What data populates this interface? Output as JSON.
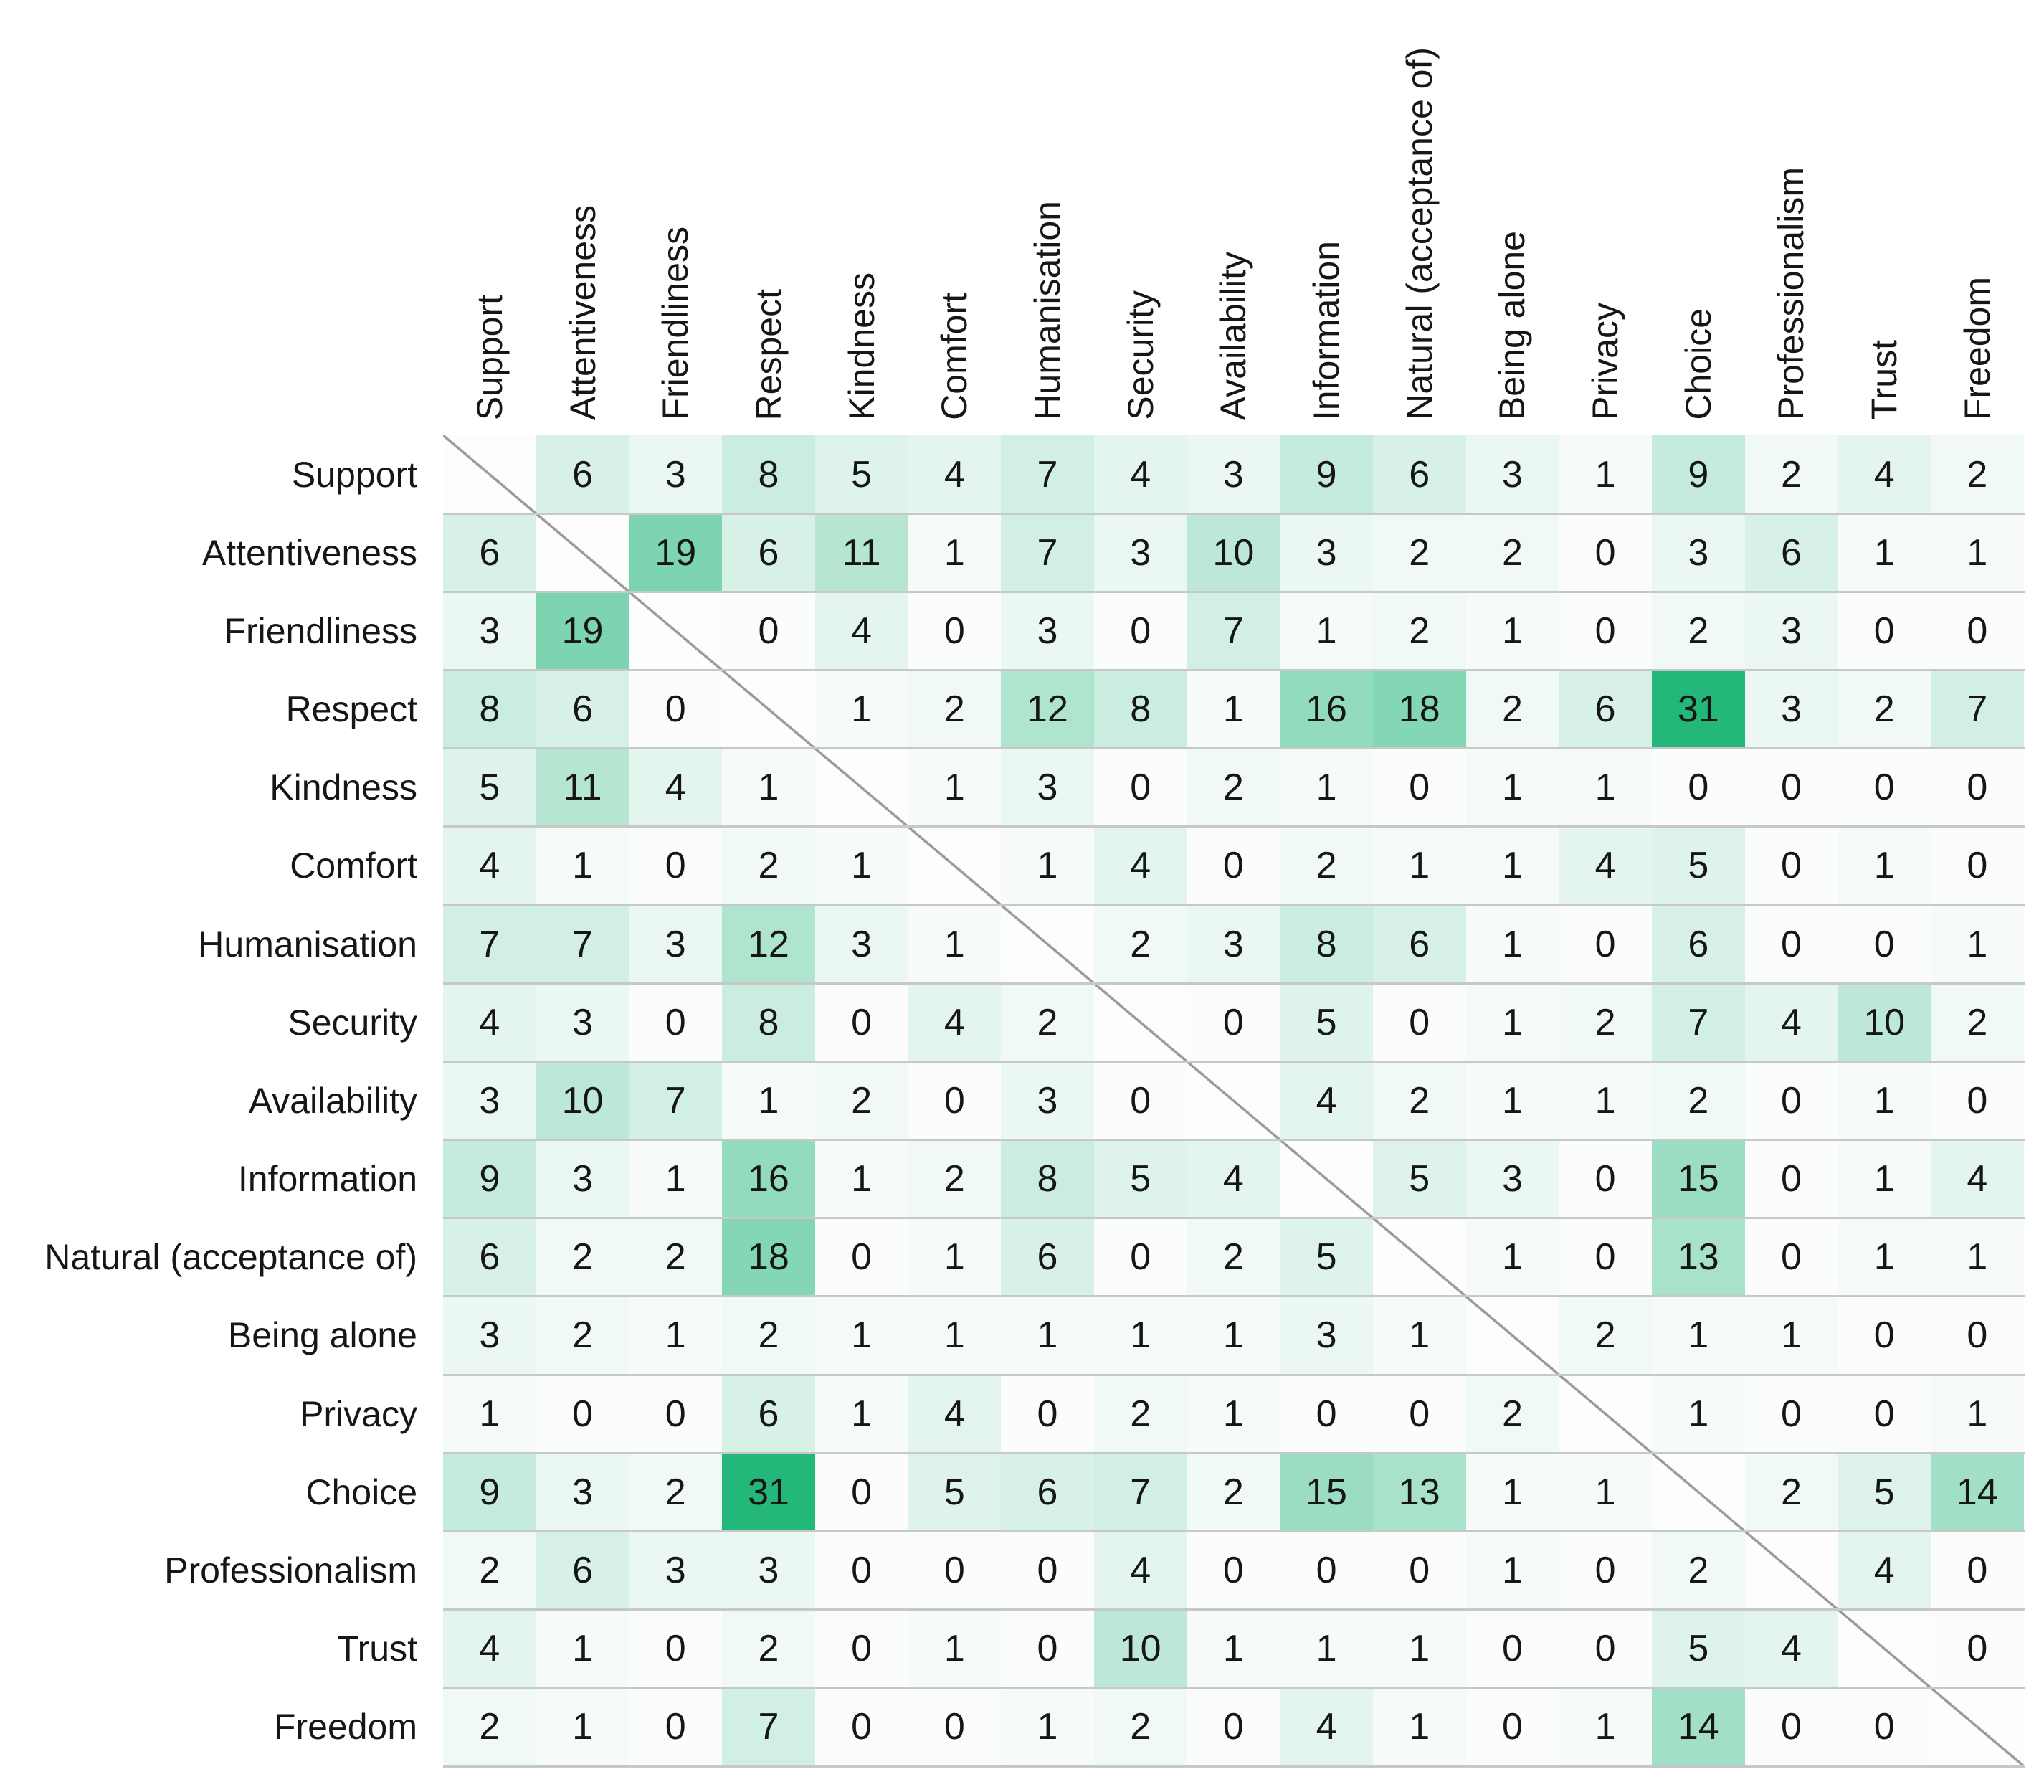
{
  "figure": {
    "background_color": "#ffffff",
    "text_color": "#161616",
    "separator_color": "#c6c9c7",
    "diagonal_line_color": "#9b9b9b",
    "cell_min_color": "#fbfcfc",
    "cell_max_color": "#23b87a"
  },
  "chart_data": {
    "type": "heatmap",
    "title": "",
    "description": "Symmetric co-occurrence matrix of care values; diagonal blank with gray diagonal line; white-to-green color scale by cell value",
    "categories": [
      "Support",
      "Attentiveness",
      "Friendliness",
      "Respect",
      "Kindness",
      "Comfort",
      "Humanisation",
      "Security",
      "Availability",
      "Information",
      "Natural (acceptance of)",
      "Being alone",
      "Privacy",
      "Choice",
      "Professionalism",
      "Trust",
      "Freedom"
    ],
    "matrix": [
      [
        null,
        6,
        3,
        8,
        5,
        4,
        7,
        4,
        3,
        9,
        6,
        3,
        1,
        9,
        2,
        4,
        2
      ],
      [
        6,
        null,
        19,
        6,
        11,
        1,
        7,
        3,
        10,
        3,
        2,
        2,
        0,
        3,
        6,
        1,
        1
      ],
      [
        3,
        19,
        null,
        0,
        4,
        0,
        3,
        0,
        7,
        1,
        2,
        1,
        0,
        2,
        3,
        0,
        0
      ],
      [
        8,
        6,
        0,
        null,
        1,
        2,
        12,
        8,
        1,
        16,
        18,
        2,
        6,
        31,
        3,
        2,
        7
      ],
      [
        5,
        11,
        4,
        1,
        null,
        1,
        3,
        0,
        2,
        1,
        0,
        1,
        1,
        0,
        0,
        0,
        0
      ],
      [
        4,
        1,
        0,
        2,
        1,
        null,
        1,
        4,
        0,
        2,
        1,
        1,
        4,
        5,
        0,
        1,
        0
      ],
      [
        7,
        7,
        3,
        12,
        3,
        1,
        null,
        2,
        3,
        8,
        6,
        1,
        0,
        6,
        0,
        0,
        1
      ],
      [
        4,
        3,
        0,
        8,
        0,
        4,
        2,
        null,
        0,
        5,
        0,
        1,
        2,
        7,
        4,
        10,
        2
      ],
      [
        3,
        10,
        7,
        1,
        2,
        0,
        3,
        0,
        null,
        4,
        2,
        1,
        1,
        2,
        0,
        1,
        0
      ],
      [
        9,
        3,
        1,
        16,
        1,
        2,
        8,
        5,
        4,
        null,
        5,
        3,
        0,
        15,
        0,
        1,
        4
      ],
      [
        6,
        2,
        2,
        18,
        0,
        1,
        6,
        0,
        2,
        5,
        null,
        1,
        0,
        13,
        0,
        1,
        1
      ],
      [
        3,
        2,
        1,
        2,
        1,
        1,
        1,
        1,
        1,
        3,
        1,
        null,
        2,
        1,
        1,
        0,
        0
      ],
      [
        1,
        0,
        0,
        6,
        1,
        4,
        0,
        2,
        1,
        0,
        0,
        2,
        null,
        1,
        0,
        0,
        1
      ],
      [
        9,
        3,
        2,
        31,
        0,
        5,
        6,
        7,
        2,
        15,
        13,
        1,
        1,
        null,
        2,
        5,
        14
      ],
      [
        2,
        6,
        3,
        3,
        0,
        0,
        0,
        4,
        0,
        0,
        0,
        1,
        0,
        2,
        null,
        4,
        0
      ],
      [
        4,
        1,
        0,
        2,
        0,
        1,
        0,
        10,
        1,
        1,
        1,
        0,
        0,
        5,
        4,
        null,
        0
      ],
      [
        2,
        1,
        0,
        7,
        0,
        0,
        1,
        2,
        0,
        4,
        1,
        0,
        1,
        14,
        0,
        0,
        null
      ]
    ],
    "colorscale": {
      "min_value": 0,
      "max_value": 31,
      "min_color": "#fbfcfc",
      "max_color": "#23b87a"
    },
    "legend_position": "none",
    "grid": "horizontal-row-separators-only"
  }
}
